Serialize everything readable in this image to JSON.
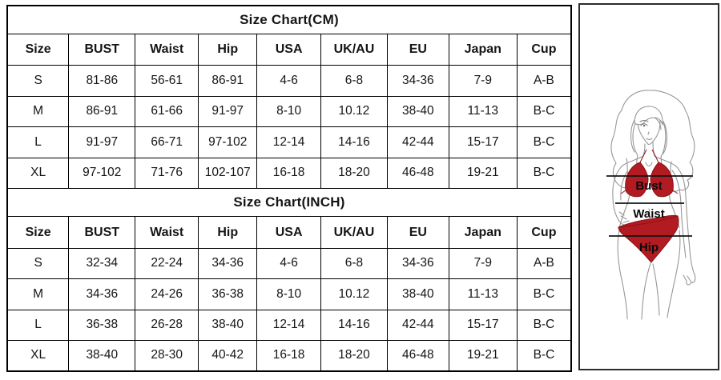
{
  "chart_data": [
    {
      "type": "table",
      "title": "Size Chart(CM)",
      "headers": [
        "Size",
        "BUST",
        "Waist",
        "Hip",
        "USA",
        "UK/AU",
        "EU",
        "Japan",
        "Cup"
      ],
      "rows": [
        [
          "S",
          "81-86",
          "56-61",
          "86-91",
          "4-6",
          "6-8",
          "34-36",
          "7-9",
          "A-B"
        ],
        [
          "M",
          "86-91",
          "61-66",
          "91-97",
          "8-10",
          "10.12",
          "38-40",
          "11-13",
          "B-C"
        ],
        [
          "L",
          "91-97",
          "66-71",
          "97-102",
          "12-14",
          "14-16",
          "42-44",
          "15-17",
          "B-C"
        ],
        [
          "XL",
          "97-102",
          "71-76",
          "102-107",
          "16-18",
          "18-20",
          "46-48",
          "19-21",
          "B-C"
        ]
      ]
    },
    {
      "type": "table",
      "title": "Size Chart(INCH)",
      "headers": [
        "Size",
        "BUST",
        "Waist",
        "Hip",
        "USA",
        "UK/AU",
        "EU",
        "Japan",
        "Cup"
      ],
      "rows": [
        [
          "S",
          "32-34",
          "22-24",
          "34-36",
          "4-6",
          "6-8",
          "34-36",
          "7-9",
          "A-B"
        ],
        [
          "M",
          "34-36",
          "24-26",
          "36-38",
          "8-10",
          "10.12",
          "38-40",
          "11-13",
          "B-C"
        ],
        [
          "L",
          "36-38",
          "26-28",
          "38-40",
          "12-14",
          "14-16",
          "42-44",
          "15-17",
          "B-C"
        ],
        [
          "XL",
          "38-40",
          "28-30",
          "40-42",
          "16-18",
          "18-20",
          "46-48",
          "19-21",
          "B-C"
        ]
      ]
    }
  ],
  "figure": {
    "labels": {
      "bust": "Bust",
      "waist": "Waist",
      "hip": "Hip"
    },
    "colors": {
      "bikini_red": "#b11b21",
      "bikini_red_dark": "#8c1217",
      "line_art": "#979797",
      "measure_line": "#141414",
      "table_border": "#000000"
    }
  }
}
